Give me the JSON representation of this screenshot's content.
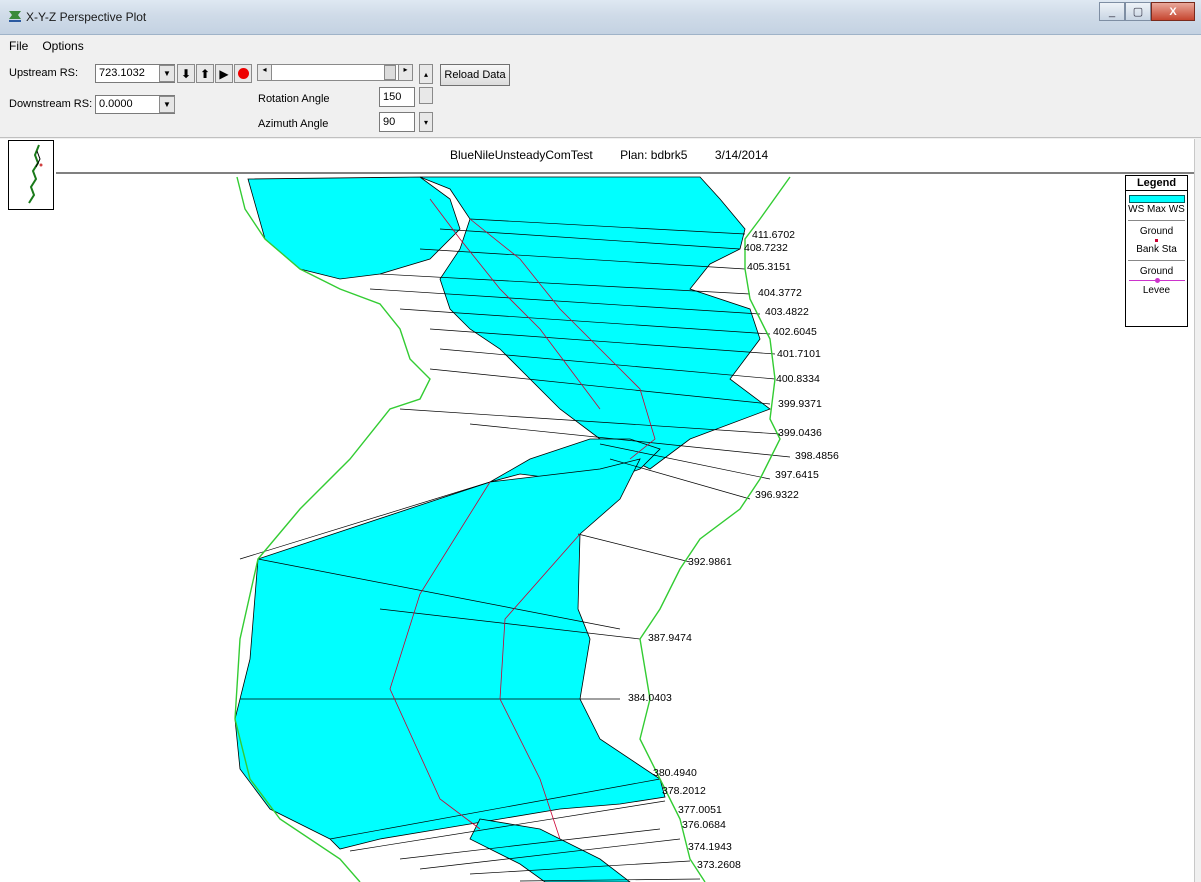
{
  "window": {
    "title": "X-Y-Z Perspective Plot",
    "buttons": {
      "minimize": "_",
      "maximize": "▢",
      "close": "X"
    }
  },
  "menu": {
    "items": [
      "File",
      "Options"
    ]
  },
  "toolbar": {
    "upstream_label": "Upstream RS:",
    "upstream_value": "723.1032",
    "downstream_label": "Downstream RS:",
    "downstream_value": "0.0000",
    "rotation_label": "Rotation Angle",
    "rotation_value": "150",
    "azimuth_label": "Azimuth Angle",
    "azimuth_value": "90",
    "reload_label": "Reload Data",
    "nav_down": "⬇",
    "nav_up": "⬆",
    "play": "▶",
    "scroll_left": "◂",
    "scroll_right": "▸"
  },
  "plot": {
    "project": "BlueNileUnsteadyComTest",
    "plan": "Plan: bdbrk5",
    "date": "3/14/2014",
    "water_color": "#00ffff",
    "ground_color": "#000000",
    "bank_color": "#cc0033",
    "levee_color": "#cc33cc",
    "reach_color": "#33cc33",
    "station_labels": [
      "411.6702",
      "408.7232",
      "405.3151",
      "404.3772",
      "403.4822",
      "402.6045",
      "401.7101",
      "400.8334",
      "399.9371",
      "399.0436",
      "398.4856",
      "397.6415",
      "396.9322",
      "392.9861",
      "387.9474",
      "384.0403",
      "380.4940",
      "378.2012",
      "377.0051",
      "376.0684",
      "374.1943",
      "373.2608"
    ]
  },
  "legend": {
    "title": "Legend",
    "entries": [
      "WS Max WS",
      "Ground",
      "Bank Sta",
      "Ground",
      "Levee"
    ]
  }
}
